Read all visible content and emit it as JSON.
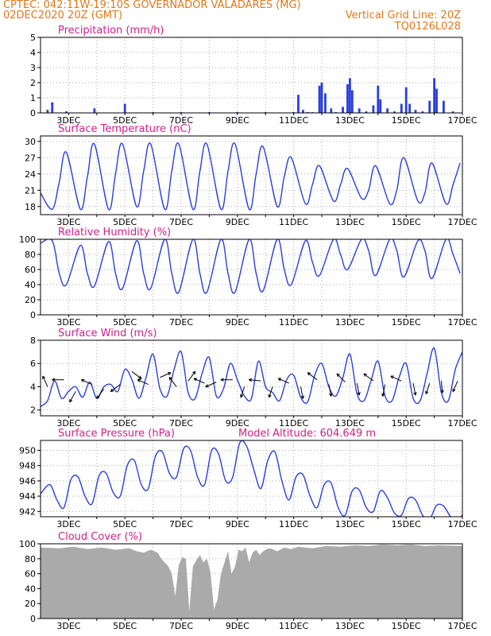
{
  "header": {
    "line1": "CPTEC:   042:11W-19:10S   GOVERNADOR VALADARES (MG)",
    "line2_left": "02DEC2020 20Z (GMT)",
    "line2_right": "Vertical Grid Line: 20Z",
    "line3_right": "TQ0126L028"
  },
  "colors": {
    "header": "#e07818",
    "panel_title": "#d0208c",
    "series": "#2a3ee0",
    "cloud": "#aaaaaa",
    "axis": "#000000",
    "grid": "#aaaaaa",
    "arrow": "#000000"
  },
  "x_axis": {
    "start": "2020-12-02T20:00Z",
    "end": "2020-12-17T20:00Z",
    "tick_labels": [
      "3DEC",
      "5DEC",
      "7DEC",
      "9DEC",
      "11DEC",
      "13DEC",
      "15DEC",
      "17DEC"
    ]
  },
  "chart_data": [
    {
      "type": "bar",
      "title": "Precipitation (mm/h)",
      "ylim": [
        0,
        5
      ],
      "yticks": [
        0,
        1,
        2,
        3,
        4,
        5
      ],
      "grid": true,
      "x": [
        "2020-12-03T02:00Z",
        "2020-12-03T06:00Z",
        "2020-12-03T18:00Z",
        "2020-12-04T18:00Z",
        "2020-12-05T20:00Z",
        "2020-12-06T20:00Z",
        "2020-12-07T20:00Z",
        "2020-12-08T20:00Z",
        "2020-12-09T20:00Z",
        "2020-12-10T20:00Z",
        "2020-12-11T20:00Z",
        "2020-12-12T00:00Z",
        "2020-12-12T04:00Z",
        "2020-12-12T08:00Z",
        "2020-12-12T12:00Z",
        "2020-12-12T18:00Z",
        "2020-12-12T20:00Z",
        "2020-12-12T23:00Z",
        "2020-12-13T04:00Z",
        "2020-12-13T08:00Z",
        "2020-12-13T14:00Z",
        "2020-12-13T18:00Z",
        "2020-12-13T20:00Z",
        "2020-12-13T22:00Z",
        "2020-12-14T04:00Z",
        "2020-12-14T10:00Z",
        "2020-12-14T16:00Z",
        "2020-12-14T20:00Z",
        "2020-12-14T22:00Z",
        "2020-12-15T04:00Z",
        "2020-12-15T10:00Z",
        "2020-12-15T16:00Z",
        "2020-12-15T20:00Z",
        "2020-12-15T23:00Z",
        "2020-12-16T04:00Z",
        "2020-12-16T10:00Z",
        "2020-12-16T16:00Z",
        "2020-12-16T20:00Z",
        "2020-12-16T22:00Z",
        "2020-12-17T04:00Z",
        "2020-12-17T12:00Z"
      ],
      "values": [
        0.2,
        0.7,
        0.1,
        0.3,
        0.6,
        0.05,
        0.05,
        0.05,
        0.05,
        0.05,
        0.05,
        1.2,
        0.2,
        0.05,
        0.05,
        1.8,
        2.0,
        1.3,
        0.3,
        0.05,
        0.4,
        1.9,
        2.3,
        1.5,
        0.3,
        0.1,
        0.5,
        1.8,
        0.9,
        0.3,
        0.1,
        0.6,
        1.7,
        0.6,
        0.2,
        0.1,
        0.8,
        2.3,
        1.6,
        0.8,
        0.1
      ]
    },
    {
      "type": "line",
      "title": "Surface Temperature (nC)",
      "ylim": [
        16.5,
        31
      ],
      "yticks": [
        18,
        21,
        24,
        27,
        30
      ],
      "grid": true,
      "x": [
        "2020-12-02T20:00Z",
        "2020-12-03T06:00Z",
        "2020-12-03T12:00Z",
        "2020-12-03T18:00Z",
        "2020-12-04T06:00Z",
        "2020-12-04T12:00Z",
        "2020-12-04T18:00Z",
        "2020-12-05T06:00Z",
        "2020-12-05T12:00Z",
        "2020-12-05T18:00Z",
        "2020-12-06T06:00Z",
        "2020-12-06T12:00Z",
        "2020-12-06T18:00Z",
        "2020-12-07T06:00Z",
        "2020-12-07T12:00Z",
        "2020-12-07T18:00Z",
        "2020-12-08T06:00Z",
        "2020-12-08T12:00Z",
        "2020-12-08T18:00Z",
        "2020-12-09T06:00Z",
        "2020-12-09T12:00Z",
        "2020-12-09T18:00Z",
        "2020-12-10T06:00Z",
        "2020-12-10T12:00Z",
        "2020-12-10T18:00Z",
        "2020-12-11T06:00Z",
        "2020-12-11T12:00Z",
        "2020-12-11T18:00Z",
        "2020-12-12T06:00Z",
        "2020-12-12T12:00Z",
        "2020-12-12T18:00Z",
        "2020-12-13T06:00Z",
        "2020-12-13T12:00Z",
        "2020-12-13T18:00Z",
        "2020-12-14T06:00Z",
        "2020-12-14T12:00Z",
        "2020-12-14T18:00Z",
        "2020-12-15T06:00Z",
        "2020-12-15T12:00Z",
        "2020-12-15T18:00Z",
        "2020-12-16T06:00Z",
        "2020-12-16T12:00Z",
        "2020-12-16T18:00Z",
        "2020-12-17T06:00Z",
        "2020-12-17T12:00Z",
        "2020-12-17T18:00Z"
      ],
      "values": [
        20.5,
        17.5,
        22.5,
        28.0,
        17.5,
        23.5,
        29.5,
        17.5,
        24.0,
        29.5,
        18.0,
        24.5,
        29.5,
        17.5,
        24.5,
        29.5,
        17.5,
        24.5,
        29.5,
        17.5,
        24.5,
        29.5,
        17.5,
        24.0,
        29.0,
        18.0,
        23.5,
        27.0,
        18.5,
        22.0,
        25.5,
        19.0,
        22.0,
        25.0,
        19.5,
        21.0,
        25.5,
        18.5,
        21.0,
        27.0,
        19.0,
        20.5,
        26.0,
        18.5,
        22.0,
        26.0
      ]
    },
    {
      "type": "line",
      "title": "Relative Humidity (%)",
      "ylim": [
        0,
        100
      ],
      "yticks": [
        0,
        20,
        40,
        60,
        80,
        100
      ],
      "grid": true,
      "x": [
        "2020-12-02T20:00Z",
        "2020-12-03T06:00Z",
        "2020-12-03T12:00Z",
        "2020-12-03T18:00Z",
        "2020-12-04T06:00Z",
        "2020-12-04T12:00Z",
        "2020-12-04T18:00Z",
        "2020-12-05T06:00Z",
        "2020-12-05T12:00Z",
        "2020-12-05T18:00Z",
        "2020-12-06T06:00Z",
        "2020-12-06T12:00Z",
        "2020-12-06T18:00Z",
        "2020-12-07T06:00Z",
        "2020-12-07T12:00Z",
        "2020-12-07T18:00Z",
        "2020-12-08T06:00Z",
        "2020-12-08T12:00Z",
        "2020-12-08T18:00Z",
        "2020-12-09T06:00Z",
        "2020-12-09T12:00Z",
        "2020-12-09T18:00Z",
        "2020-12-10T06:00Z",
        "2020-12-10T12:00Z",
        "2020-12-10T18:00Z",
        "2020-12-11T06:00Z",
        "2020-12-11T12:00Z",
        "2020-12-11T18:00Z",
        "2020-12-12T06:00Z",
        "2020-12-12T12:00Z",
        "2020-12-12T18:00Z",
        "2020-12-13T06:00Z",
        "2020-12-13T12:00Z",
        "2020-12-13T18:00Z",
        "2020-12-14T06:00Z",
        "2020-12-14T12:00Z",
        "2020-12-14T18:00Z",
        "2020-12-15T06:00Z",
        "2020-12-15T12:00Z",
        "2020-12-15T18:00Z",
        "2020-12-16T06:00Z",
        "2020-12-16T12:00Z",
        "2020-12-16T18:00Z",
        "2020-12-17T06:00Z",
        "2020-12-17T12:00Z",
        "2020-12-17T18:00Z"
      ],
      "values": [
        95,
        98,
        55,
        40,
        92,
        55,
        38,
        97,
        55,
        35,
        98,
        55,
        35,
        100,
        55,
        30,
        100,
        55,
        30,
        100,
        55,
        30,
        100,
        55,
        32,
        100,
        60,
        40,
        98,
        70,
        52,
        100,
        80,
        60,
        100,
        85,
        52,
        100,
        85,
        50,
        98,
        85,
        48,
        100,
        80,
        55
      ]
    },
    {
      "type": "line",
      "title": "Surface Wind (m/s)",
      "ylim": [
        1.5,
        8
      ],
      "yticks": [
        2,
        4,
        6,
        8
      ],
      "grid": true,
      "x": [
        "2020-12-02T20:00Z",
        "2020-12-03T02:00Z",
        "2020-12-03T08:00Z",
        "2020-12-03T14:00Z",
        "2020-12-03T20:00Z",
        "2020-12-04T02:00Z",
        "2020-12-04T08:00Z",
        "2020-12-04T14:00Z",
        "2020-12-04T20:00Z",
        "2020-12-05T02:00Z",
        "2020-12-05T08:00Z",
        "2020-12-05T14:00Z",
        "2020-12-05T20:00Z",
        "2020-12-06T02:00Z",
        "2020-12-06T08:00Z",
        "2020-12-06T14:00Z",
        "2020-12-06T20:00Z",
        "2020-12-07T02:00Z",
        "2020-12-07T08:00Z",
        "2020-12-07T14:00Z",
        "2020-12-07T20:00Z",
        "2020-12-08T02:00Z",
        "2020-12-08T08:00Z",
        "2020-12-08T14:00Z",
        "2020-12-08T20:00Z",
        "2020-12-09T02:00Z",
        "2020-12-09T08:00Z",
        "2020-12-09T14:00Z",
        "2020-12-09T20:00Z",
        "2020-12-10T02:00Z",
        "2020-12-10T08:00Z",
        "2020-12-10T14:00Z",
        "2020-12-10T20:00Z",
        "2020-12-11T02:00Z",
        "2020-12-11T08:00Z",
        "2020-12-11T14:00Z",
        "2020-12-11T20:00Z",
        "2020-12-12T02:00Z",
        "2020-12-12T08:00Z",
        "2020-12-12T14:00Z",
        "2020-12-12T20:00Z",
        "2020-12-13T02:00Z",
        "2020-12-13T08:00Z",
        "2020-12-13T14:00Z",
        "2020-12-13T20:00Z",
        "2020-12-14T02:00Z",
        "2020-12-14T08:00Z",
        "2020-12-14T14:00Z",
        "2020-12-14T20:00Z",
        "2020-12-15T02:00Z",
        "2020-12-15T08:00Z",
        "2020-12-15T14:00Z",
        "2020-12-15T20:00Z",
        "2020-12-16T02:00Z",
        "2020-12-16T08:00Z",
        "2020-12-16T14:00Z",
        "2020-12-16T20:00Z",
        "2020-12-17T02:00Z",
        "2020-12-17T08:00Z",
        "2020-12-17T14:00Z",
        "2020-12-17T20:00Z"
      ],
      "values": [
        2.3,
        2.8,
        4.5,
        3.0,
        3.6,
        4.0,
        3.1,
        4.4,
        3.0,
        4.0,
        4.2,
        3.6,
        5.5,
        4.6,
        3.0,
        4.8,
        6.8,
        3.8,
        3.2,
        5.5,
        7.0,
        3.5,
        3.0,
        5.2,
        6.5,
        3.2,
        3.8,
        6.0,
        4.6,
        3.2,
        3.0,
        6.2,
        4.0,
        3.5,
        2.8,
        4.6,
        5.0,
        3.1,
        2.7,
        5.0,
        6.0,
        4.0,
        3.2,
        4.8,
        6.8,
        3.4,
        2.8,
        4.5,
        6.2,
        3.2,
        2.8,
        4.8,
        6.0,
        3.0,
        2.8,
        5.2,
        7.3,
        3.5,
        2.8,
        5.5,
        7.0
      ]
    },
    {
      "type": "line",
      "title": "Surface Pressure (hPa)",
      "annotation": "Model Altitude: 604.649 m",
      "ylim": [
        941.3,
        951.3
      ],
      "yticks": [
        942,
        944,
        946,
        948,
        950
      ],
      "grid": true,
      "x": [
        "2020-12-02T20:00Z",
        "2020-12-03T04:00Z",
        "2020-12-03T10:00Z",
        "2020-12-03T16:00Z",
        "2020-12-03T22:00Z",
        "2020-12-04T04:00Z",
        "2020-12-04T10:00Z",
        "2020-12-04T16:00Z",
        "2020-12-04T22:00Z",
        "2020-12-05T04:00Z",
        "2020-12-05T10:00Z",
        "2020-12-05T16:00Z",
        "2020-12-05T22:00Z",
        "2020-12-06T04:00Z",
        "2020-12-06T10:00Z",
        "2020-12-06T16:00Z",
        "2020-12-06T22:00Z",
        "2020-12-07T04:00Z",
        "2020-12-07T10:00Z",
        "2020-12-07T16:00Z",
        "2020-12-07T22:00Z",
        "2020-12-08T04:00Z",
        "2020-12-08T10:00Z",
        "2020-12-08T16:00Z",
        "2020-12-08T22:00Z",
        "2020-12-09T04:00Z",
        "2020-12-09T10:00Z",
        "2020-12-09T16:00Z",
        "2020-12-09T22:00Z",
        "2020-12-10T04:00Z",
        "2020-12-10T10:00Z",
        "2020-12-10T16:00Z",
        "2020-12-10T22:00Z",
        "2020-12-11T04:00Z",
        "2020-12-11T10:00Z",
        "2020-12-11T16:00Z",
        "2020-12-11T22:00Z",
        "2020-12-12T04:00Z",
        "2020-12-12T10:00Z",
        "2020-12-12T16:00Z",
        "2020-12-12T22:00Z",
        "2020-12-13T04:00Z",
        "2020-12-13T10:00Z",
        "2020-12-13T16:00Z",
        "2020-12-13T22:00Z",
        "2020-12-14T04:00Z",
        "2020-12-14T10:00Z",
        "2020-12-14T16:00Z",
        "2020-12-14T22:00Z",
        "2020-12-15T04:00Z",
        "2020-12-15T10:00Z",
        "2020-12-15T16:00Z",
        "2020-12-15T22:00Z",
        "2020-12-16T04:00Z",
        "2020-12-16T10:00Z",
        "2020-12-16T16:00Z",
        "2020-12-16T22:00Z",
        "2020-12-17T04:00Z",
        "2020-12-17T10:00Z",
        "2020-12-17T16:00Z",
        "2020-12-17T20:00Z"
      ],
      "values": [
        944.3,
        945.5,
        943.5,
        942.5,
        946.2,
        946.5,
        944.0,
        943.0,
        946.7,
        947.0,
        944.5,
        944.0,
        948.0,
        948.7,
        945.5,
        945.0,
        949.2,
        949.8,
        947.0,
        946.5,
        950.2,
        950.0,
        946.5,
        945.5,
        950.0,
        949.5,
        946.0,
        946.5,
        951.0,
        950.5,
        947.5,
        945.0,
        948.7,
        949.8,
        946.0,
        943.5,
        946.5,
        946.8,
        944.0,
        942.5,
        945.5,
        945.7,
        942.5,
        941.5,
        944.7,
        944.8,
        942.5,
        942.0,
        944.7,
        943.8,
        941.8,
        941.5,
        943.7,
        943.5,
        941.5,
        941.0,
        942.8,
        942.7,
        941.3,
        941.0,
        941.5
      ]
    },
    {
      "type": "area",
      "title": "Cloud Cover (%)",
      "ylim": [
        0,
        100
      ],
      "yticks": [
        0,
        20,
        40,
        60,
        80,
        100
      ],
      "grid": true,
      "x": [
        "2020-12-02T20:00Z",
        "2020-12-03T12:00Z",
        "2020-12-04T00:00Z",
        "2020-12-04T12:00Z",
        "2020-12-05T00:00Z",
        "2020-12-05T12:00Z",
        "2020-12-06T00:00Z",
        "2020-12-06T06:00Z",
        "2020-12-06T12:00Z",
        "2020-12-06T18:00Z",
        "2020-12-07T00:00Z",
        "2020-12-07T03:00Z",
        "2020-12-07T06:00Z",
        "2020-12-07T09:00Z",
        "2020-12-07T12:00Z",
        "2020-12-07T15:00Z",
        "2020-12-07T18:00Z",
        "2020-12-07T21:00Z",
        "2020-12-08T00:00Z",
        "2020-12-08T03:00Z",
        "2020-12-08T06:00Z",
        "2020-12-08T09:00Z",
        "2020-12-08T12:00Z",
        "2020-12-08T15:00Z",
        "2020-12-08T18:00Z",
        "2020-12-08T21:00Z",
        "2020-12-09T00:00Z",
        "2020-12-09T03:00Z",
        "2020-12-09T06:00Z",
        "2020-12-09T09:00Z",
        "2020-12-09T12:00Z",
        "2020-12-09T15:00Z",
        "2020-12-09T18:00Z",
        "2020-12-09T21:00Z",
        "2020-12-10T00:00Z",
        "2020-12-10T03:00Z",
        "2020-12-10T06:00Z",
        "2020-12-10T09:00Z",
        "2020-12-10T12:00Z",
        "2020-12-10T15:00Z",
        "2020-12-10T18:00Z",
        "2020-12-10T21:00Z",
        "2020-12-11T00:00Z",
        "2020-12-11T06:00Z",
        "2020-12-11T12:00Z",
        "2020-12-11T18:00Z",
        "2020-12-12T00:00Z",
        "2020-12-12T12:00Z",
        "2020-12-13T00:00Z",
        "2020-12-13T12:00Z",
        "2020-12-14T00:00Z",
        "2020-12-14T12:00Z",
        "2020-12-15T00:00Z",
        "2020-12-15T12:00Z",
        "2020-12-16T00:00Z",
        "2020-12-16T12:00Z",
        "2020-12-17T00:00Z",
        "2020-12-17T20:00Z"
      ],
      "values": [
        95,
        94,
        96,
        93,
        95,
        92,
        94,
        90,
        88,
        92,
        88,
        80,
        75,
        70,
        60,
        30,
        72,
        82,
        80,
        10,
        70,
        78,
        85,
        75,
        80,
        62,
        12,
        25,
        60,
        75,
        90,
        60,
        70,
        92,
        90,
        95,
        75,
        88,
        92,
        85,
        90,
        93,
        94,
        90,
        95,
        93,
        96,
        94,
        97,
        96,
        98,
        97,
        99,
        98,
        99,
        97,
        98,
        97
      ]
    }
  ],
  "wind_vectors": {
    "x": [
      "2020-12-03T02:00Z",
      "2020-12-03T16:00Z",
      "2020-12-04T02:00Z",
      "2020-12-04T16:00Z",
      "2020-12-05T02:00Z",
      "2020-12-05T16:00Z",
      "2020-12-06T02:00Z",
      "2020-12-06T16:00Z",
      "2020-12-07T02:00Z",
      "2020-12-07T16:00Z",
      "2020-12-08T02:00Z",
      "2020-12-08T16:00Z",
      "2020-12-09T02:00Z",
      "2020-12-09T16:00Z",
      "2020-12-10T02:00Z",
      "2020-12-10T16:00Z",
      "2020-12-11T02:00Z",
      "2020-12-11T16:00Z",
      "2020-12-12T02:00Z",
      "2020-12-12T16:00Z",
      "2020-12-13T02:00Z",
      "2020-12-13T16:00Z",
      "2020-12-14T02:00Z",
      "2020-12-14T16:00Z",
      "2020-12-15T02:00Z",
      "2020-12-15T16:00Z",
      "2020-12-16T02:00Z",
      "2020-12-16T16:00Z",
      "2020-12-17T02:00Z",
      "2020-12-17T16:00Z"
    ],
    "y": [
      4.0,
      4.6,
      3.6,
      4.2,
      3.8,
      4.2,
      5.3,
      4.2,
      4.8,
      4.0,
      4.5,
      4.3,
      4.4,
      4.6,
      4.0,
      4.5,
      4.0,
      4.3,
      4.0,
      4.6,
      4.2,
      4.4,
      4.3,
      4.5,
      4.2,
      4.5,
      4.3,
      4.3,
      4.5,
      4.5
    ],
    "u": [
      -0.4,
      -1.0,
      -0.5,
      -0.9,
      -0.6,
      -0.8,
      0.8,
      -0.9,
      0.9,
      -0.6,
      0.6,
      -0.9,
      -0.9,
      -1.0,
      -0.3,
      -1.0,
      -0.3,
      -0.9,
      0.2,
      -0.8,
      0.2,
      -0.7,
      0.2,
      -0.8,
      -0.2,
      -0.9,
      0.2,
      -0.3,
      0.1,
      -0.4
    ],
    "v": [
      0.9,
      0.0,
      -0.9,
      0.4,
      -0.8,
      -0.6,
      -0.6,
      0.4,
      0.4,
      0.8,
      0.8,
      0.4,
      -0.4,
      0.0,
      -0.9,
      0.1,
      -0.9,
      0.4,
      -1.0,
      0.6,
      -1.0,
      0.7,
      -1.0,
      0.6,
      -1.0,
      0.4,
      -1.0,
      -0.9,
      -1.0,
      -0.9
    ]
  }
}
